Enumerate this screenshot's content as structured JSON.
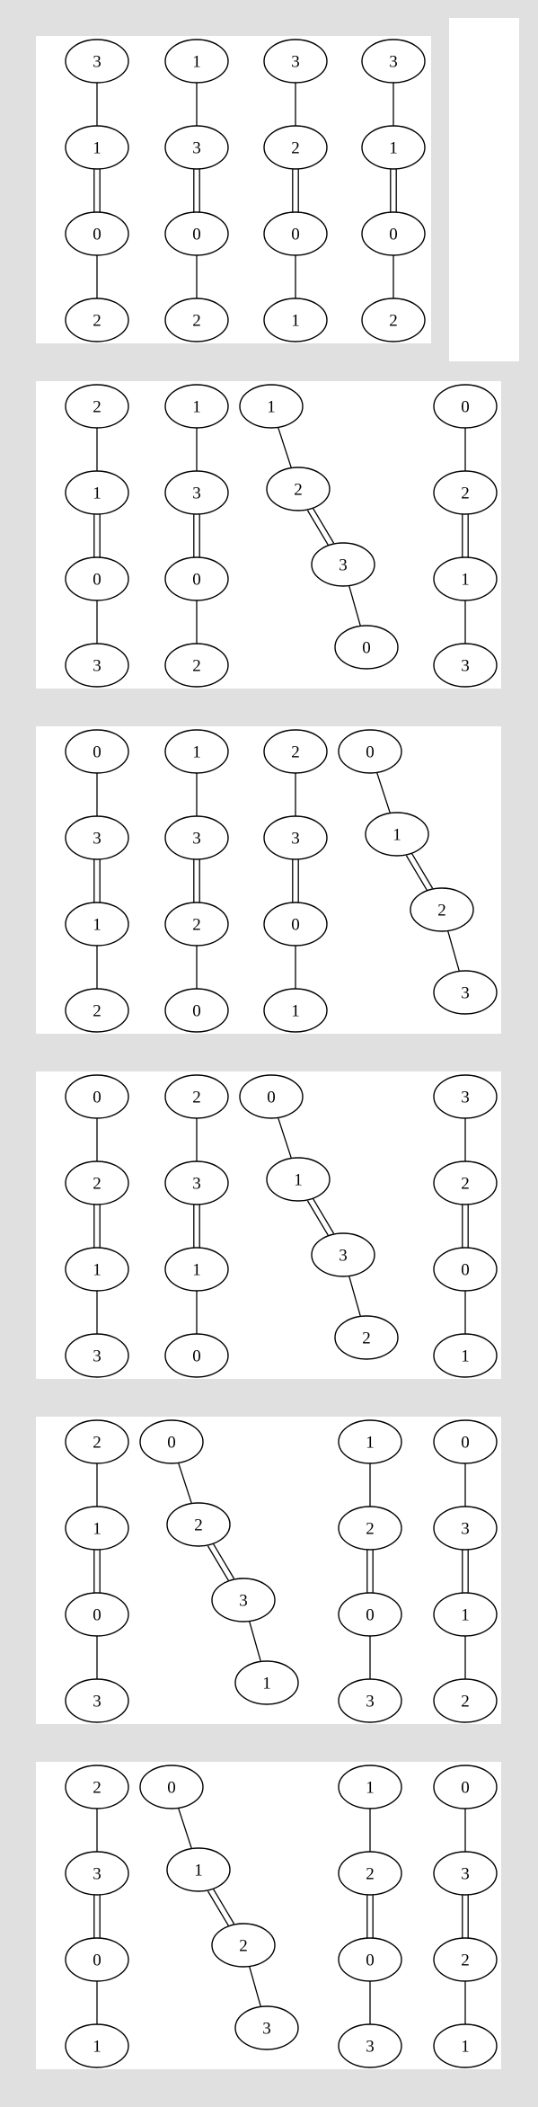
{
  "colors": {
    "background": "#e0e0e0",
    "panel": "#ffffff",
    "stroke": "#000000"
  },
  "panels": [
    {
      "chains": [
        {
          "labels": [
            "3",
            "1",
            "0",
            "2"
          ]
        },
        {
          "labels": [
            "1",
            "3",
            "0",
            "2"
          ]
        },
        {
          "labels": [
            "3",
            "2",
            "0",
            "1"
          ]
        },
        {
          "labels": [
            "3",
            "1",
            "0",
            "2"
          ]
        }
      ]
    },
    {
      "chains": [
        {
          "labels": [
            "2",
            "1",
            "0",
            "3"
          ]
        },
        {
          "labels": [
            "1",
            "3",
            "0",
            "2"
          ]
        },
        {
          "labels": [
            "1",
            "2",
            "3",
            "0"
          ]
        },
        {
          "labels": [
            "0",
            "2",
            "1",
            "3"
          ]
        }
      ]
    },
    {
      "chains": [
        {
          "labels": [
            "0",
            "3",
            "1",
            "2"
          ]
        },
        {
          "labels": [
            "1",
            "3",
            "2",
            "0"
          ]
        },
        {
          "labels": [
            "2",
            "3",
            "0",
            "1"
          ]
        },
        {
          "labels": [
            "0",
            "1",
            "2",
            "3"
          ]
        }
      ]
    },
    {
      "chains": [
        {
          "labels": [
            "0",
            "2",
            "1",
            "3"
          ]
        },
        {
          "labels": [
            "2",
            "3",
            "1",
            "0"
          ]
        },
        {
          "labels": [
            "0",
            "1",
            "3",
            "2"
          ]
        },
        {
          "labels": [
            "3",
            "2",
            "0",
            "1"
          ]
        }
      ]
    },
    {
      "chains": [
        {
          "labels": [
            "2",
            "1",
            "0",
            "3"
          ]
        },
        {
          "labels": [
            "0",
            "2",
            "3",
            "1"
          ]
        },
        {
          "labels": [
            "1",
            "2",
            "0",
            "3"
          ]
        },
        {
          "labels": [
            "0",
            "3",
            "1",
            "2"
          ]
        }
      ]
    },
    {
      "chains": [
        {
          "labels": [
            "2",
            "3",
            "0",
            "1"
          ]
        },
        {
          "labels": [
            "0",
            "1",
            "2",
            "3"
          ]
        },
        {
          "labels": [
            "1",
            "2",
            "0",
            "3"
          ]
        },
        {
          "labels": [
            "0",
            "3",
            "2",
            "1"
          ]
        }
      ]
    }
  ]
}
